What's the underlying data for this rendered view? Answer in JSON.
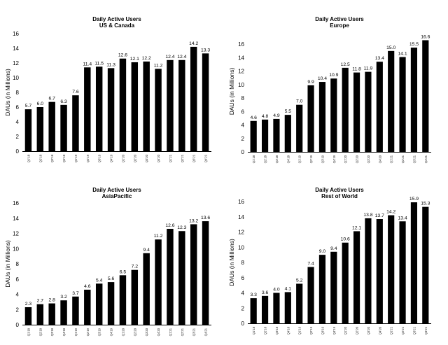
{
  "chart_data": [
    {
      "type": "bar",
      "title": "Daily Active Users",
      "subtitle": "US & Canada",
      "ylabel": "DAUs (in Millions)",
      "ylim": [
        0,
        16
      ],
      "yticks": [
        0,
        2,
        4,
        6,
        8,
        10,
        12,
        14,
        16
      ],
      "categories": [
        "Q1'18",
        "Q2'18",
        "Q3'18",
        "Q4'18",
        "Q1'19",
        "Q2'19",
        "Q3'19",
        "Q4'19",
        "Q1'20",
        "Q2'20",
        "Q3'20",
        "Q4'20",
        "Q1'21",
        "Q2'21",
        "Q3'21",
        "Q4'21"
      ],
      "values": [
        5.7,
        6.0,
        6.7,
        6.3,
        7.6,
        11.4,
        11.5,
        11.3,
        12.6,
        12.1,
        12.2,
        11.2,
        12.4,
        12.4,
        14.2,
        13.3
      ],
      "value_labels": [
        "5.7",
        "6.0",
        "6.7",
        "6.3",
        "7.6",
        "11.4",
        "11.5",
        "11.3",
        "12.6",
        "12.1",
        "12.2",
        "11.2",
        "12.4",
        "12.4",
        "14.2",
        "13.3"
      ],
      "color": "#000000"
    },
    {
      "type": "bar",
      "title": "Daily Active Users",
      "subtitle": "Europe",
      "ylabel": "DAUs (in Millions)",
      "ylim": [
        0,
        18
      ],
      "yticks": [
        0,
        2,
        4,
        6,
        8,
        10,
        12,
        14,
        16
      ],
      "categories": [
        "Q1'18",
        "Q2'18",
        "Q3'18",
        "Q4'18",
        "Q1'19",
        "Q2'19",
        "Q3'19",
        "Q4'19",
        "Q1'20",
        "Q2'20",
        "Q3'20",
        "Q4'20",
        "Q1'21",
        "Q2'21",
        "Q3'21",
        "Q4'21"
      ],
      "values": [
        4.6,
        4.8,
        4.9,
        5.5,
        7.0,
        9.9,
        10.4,
        10.9,
        12.5,
        11.8,
        11.9,
        13.4,
        15.0,
        14.1,
        15.5,
        16.6
      ],
      "value_labels": [
        "4.6",
        "4.8",
        "4.9",
        "5.5",
        "7.0",
        "9.9",
        "10.4",
        "10.9",
        "12.5",
        "11.8",
        "11.9",
        "13.4",
        "15.0",
        "14.1",
        "15.5",
        "16.6"
      ],
      "color": "#000000"
    },
    {
      "type": "bar",
      "title": "Daily Active Users",
      "subtitle": "AsiaPacific",
      "ylabel": "DAUs (in Millions)",
      "ylim": [
        0,
        16
      ],
      "yticks": [
        0,
        2,
        4,
        6,
        8,
        10,
        12,
        14,
        16
      ],
      "categories": [
        "Q1'18",
        "Q2'18",
        "Q3'18",
        "Q4'18",
        "Q1'19",
        "Q2'19",
        "Q3'19",
        "Q4'19",
        "Q1'20",
        "Q2'20",
        "Q3'20",
        "Q4'20",
        "Q1'21",
        "Q2'21",
        "Q3'21",
        "Q4'21"
      ],
      "values": [
        2.3,
        2.7,
        2.8,
        3.2,
        3.7,
        4.6,
        5.4,
        5.6,
        6.5,
        7.2,
        9.4,
        11.2,
        12.6,
        12.3,
        13.2,
        13.6
      ],
      "value_labels": [
        "2.3",
        "2.7",
        "2.8",
        "3.2",
        "3.7",
        "4.6",
        "5.4",
        "5.6",
        "6.5",
        "7.2",
        "9.4",
        "11.2",
        "12.6",
        "12.3",
        "13.2",
        "13.6"
      ],
      "color": "#000000"
    },
    {
      "type": "bar",
      "title": "Daily Active Users",
      "subtitle": "Rest of World",
      "ylabel": "DAUs (in Millions)",
      "ylim": [
        0,
        16
      ],
      "yticks": [
        0,
        2,
        4,
        6,
        8,
        10,
        12,
        14,
        16
      ],
      "categories": [
        "Q1'18",
        "Q2'18",
        "Q3'18",
        "Q4'18",
        "Q1'19",
        "Q2'19",
        "Q3'19",
        "Q4'19",
        "Q1'20",
        "Q2'20",
        "Q3'20",
        "Q4'20",
        "Q1'21",
        "Q2'21",
        "Q3'21",
        "Q4'21"
      ],
      "values": [
        3.3,
        3.6,
        4.0,
        4.1,
        5.2,
        7.4,
        9.0,
        9.4,
        10.6,
        12.1,
        13.8,
        13.7,
        14.2,
        13.4,
        15.9,
        15.3
      ],
      "value_labels": [
        "3.3",
        "3.6",
        "4.0",
        "4.1",
        "5.2",
        "7.4",
        "9.0",
        "9.4",
        "10.6",
        "12.1",
        "13.8",
        "13.7",
        "14.2",
        "13.4",
        "15.9",
        "15.3"
      ],
      "color": "#000000"
    }
  ]
}
